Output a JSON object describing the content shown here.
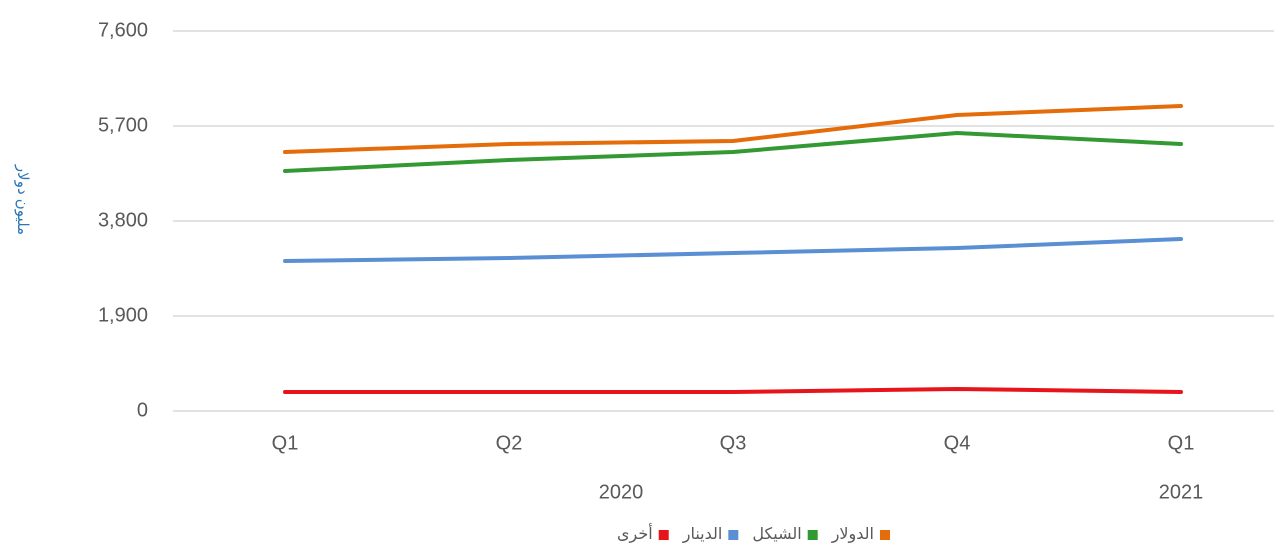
{
  "chart_data": {
    "type": "line",
    "y_label": "مليون دولار",
    "categories": [
      "Q1",
      "Q2",
      "Q3",
      "Q4",
      "Q1"
    ],
    "groups": [
      {
        "label": "2020",
        "size": 4
      },
      {
        "label": "2021",
        "size": 1
      }
    ],
    "series": [
      {
        "name": "الدولار",
        "color": "#e46c0a",
        "values": [
          5180,
          5340,
          5400,
          5920,
          6100
        ]
      },
      {
        "name": "الشيكل",
        "color": "#339933",
        "values": [
          4800,
          5020,
          5180,
          5560,
          5340
        ]
      },
      {
        "name": "الدينار",
        "color": "#5b8fd4",
        "values": [
          3000,
          3060,
          3160,
          3260,
          3440
        ]
      },
      {
        "name": "أخرى",
        "color": "#e8141b",
        "values": [
          380,
          380,
          380,
          440,
          380
        ]
      }
    ],
    "ylim": [
      0,
      7600
    ],
    "yticks": [
      0,
      {
        "value": 1900,
        "label": "1,900"
      },
      {
        "value": 3800,
        "label": "3,800"
      },
      {
        "value": 5700,
        "label": "5,700"
      },
      {
        "value": 7600,
        "label": "7,600"
      }
    ],
    "grid": true,
    "legend": "bottom"
  }
}
